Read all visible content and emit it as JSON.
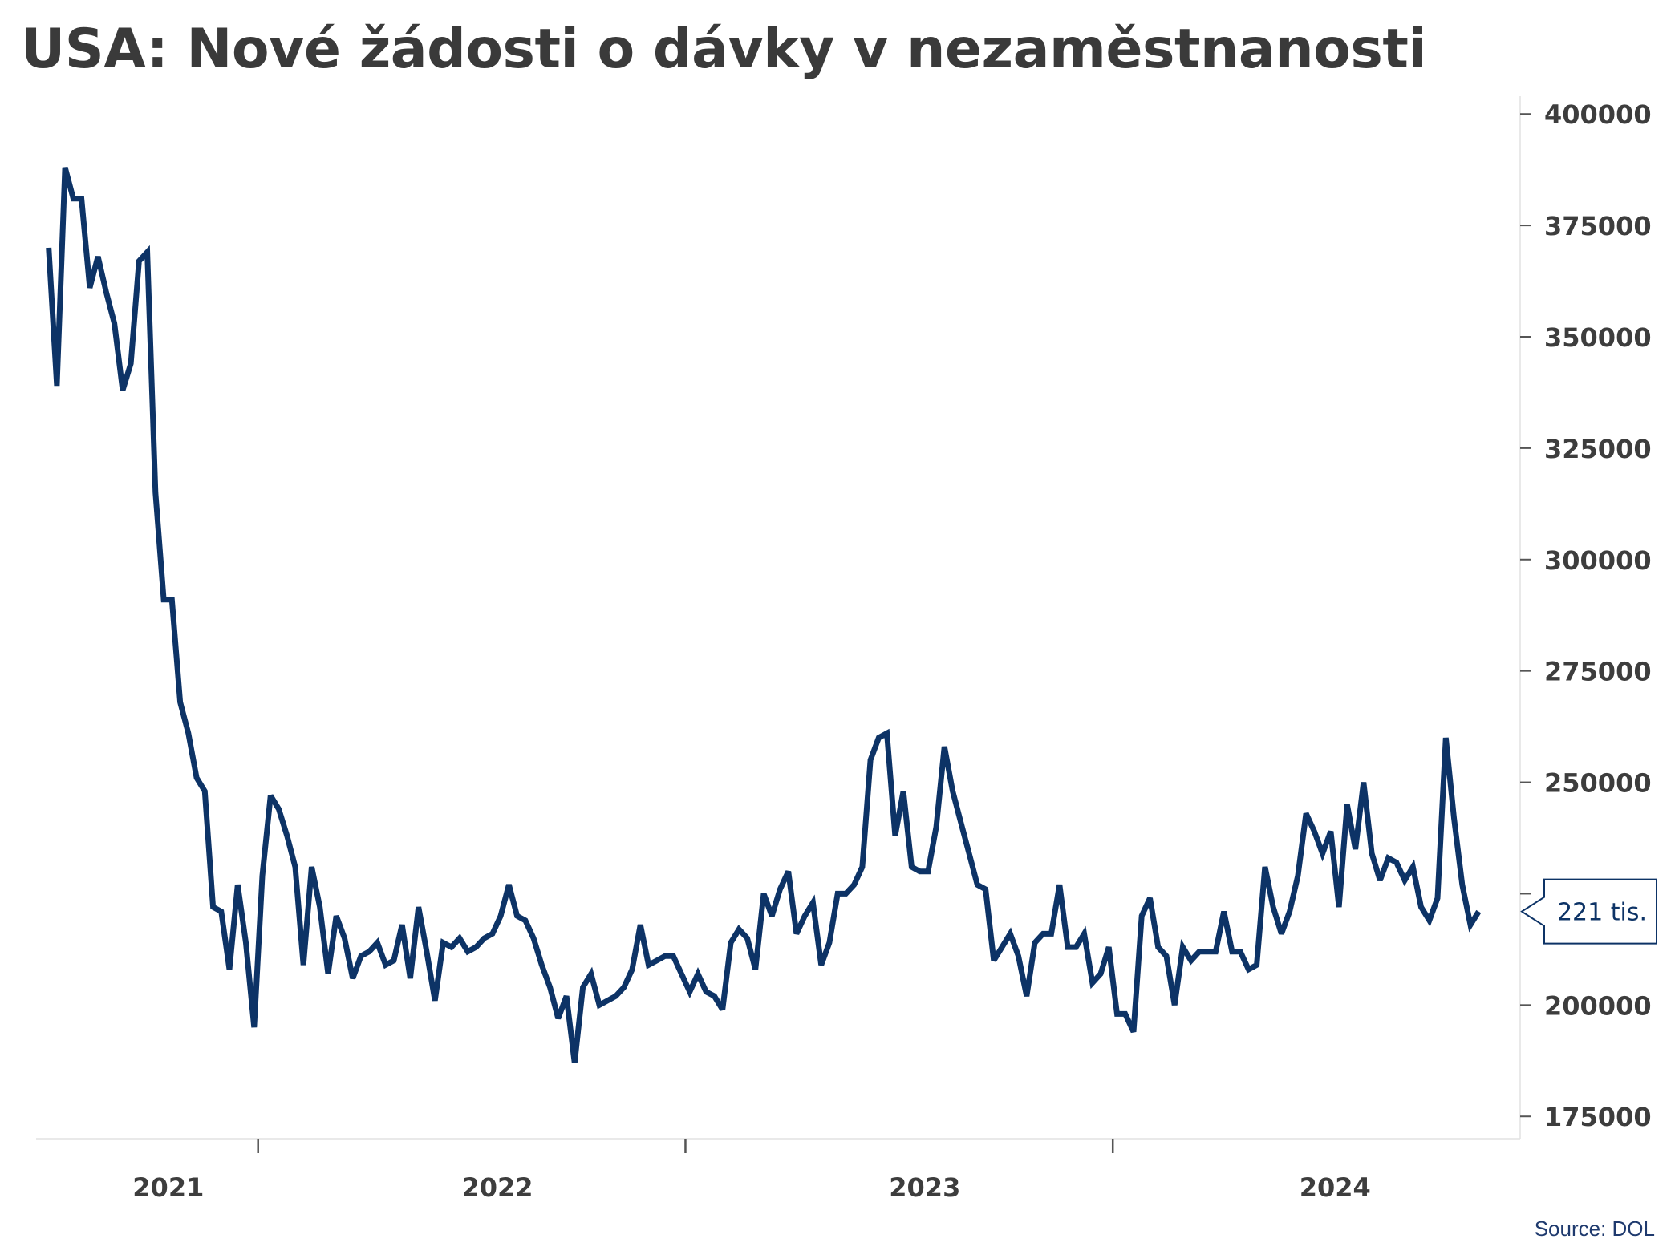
{
  "chart_data": {
    "type": "line",
    "title": "USA: Nové žádosti o dávky v nezaměstnanosti",
    "source": "Source: DOL",
    "y_axis": {
      "position": "right",
      "ticks": [
        175000,
        200000,
        225000,
        250000,
        275000,
        300000,
        325000,
        350000,
        375000,
        400000
      ],
      "tick_labels": [
        "175000",
        "200000",
        "",
        "250000",
        "275000",
        "300000",
        "325000",
        "350000",
        "375000",
        "400000"
      ],
      "ylim": [
        170000,
        404000
      ]
    },
    "x_axis": {
      "year_labels": [
        "2021",
        "2022",
        "2023",
        "2024"
      ],
      "year_label_positions": [
        2021.05,
        2021.82,
        2022.82,
        2023.78
      ],
      "year_boundaries": [
        2021.26,
        2022.26,
        2023.26
      ],
      "xlim": [
        2020.75,
        2024.2
      ]
    },
    "last_value_label": "221 tis.",
    "last_value": 221000,
    "line_color": "#0d3366",
    "series": [
      {
        "x_start": 2020.77,
        "x_step": 0.01923,
        "values": [
          370000,
          339000,
          388000,
          381000,
          381000,
          361000,
          368000,
          360000,
          353000,
          338000,
          344000,
          367000,
          369000,
          315000,
          291000,
          291000,
          268000,
          261000,
          251000,
          248000,
          222000,
          221000,
          208000,
          227000,
          214000,
          195000,
          229000,
          247000,
          244000,
          238000,
          231000,
          209000,
          231000,
          222000,
          207000,
          220000,
          215000,
          206000,
          211000,
          212000,
          214000,
          209000,
          210000,
          218000,
          206000,
          222000,
          212000,
          201000,
          214000,
          213000,
          215000,
          212000,
          213000,
          215000,
          216000,
          220000,
          227000,
          220000,
          219000,
          215000,
          209000,
          204000,
          197000,
          202000,
          187000,
          204000,
          207000,
          200000,
          201000,
          202000,
          204000,
          208000,
          218000,
          209000,
          210000,
          211000,
          211000,
          207000,
          203000,
          207000,
          203000,
          202000,
          199000,
          214000,
          217000,
          215000,
          208000,
          225000,
          220000,
          226000,
          230000,
          216000,
          220000,
          223000,
          209000,
          214000,
          225000,
          225000,
          227000,
          231000,
          255000,
          260000,
          261000,
          238000,
          248000,
          231000,
          230000,
          230000,
          240000,
          258000,
          248000,
          241000,
          234000,
          227000,
          226000,
          210000,
          213000,
          216000,
          211000,
          202000,
          214000,
          216000,
          216000,
          227000,
          213000,
          213000,
          216000,
          205000,
          207000,
          213000,
          198000,
          198000,
          194000,
          220000,
          224000,
          213000,
          211000,
          200000,
          213000,
          210000,
          212000,
          212000,
          212000,
          221000,
          212000,
          212000,
          208000,
          209000,
          231000,
          222000,
          216000,
          221000,
          229000,
          243000,
          239000,
          234000,
          239000,
          222000,
          245000,
          235000,
          250000,
          234000,
          228000,
          233000,
          232000,
          228000,
          231000,
          222000,
          219000,
          224000,
          260000,
          242000,
          227000,
          218000,
          221000
        ]
      }
    ]
  }
}
